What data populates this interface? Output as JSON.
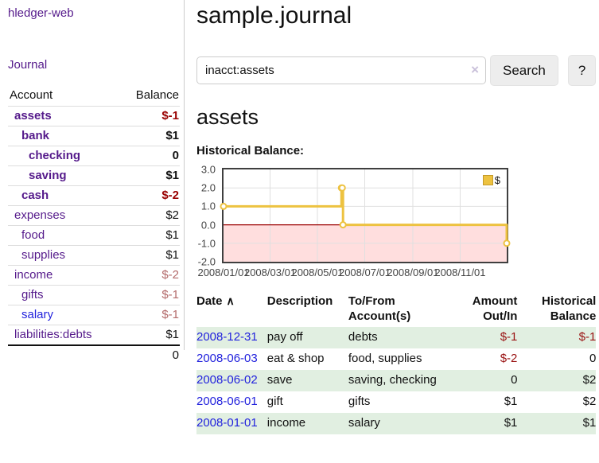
{
  "app": {
    "title": "hledger-web",
    "journal_link": "Journal"
  },
  "sidebar": {
    "header": {
      "account": "Account",
      "balance": "Balance"
    },
    "accounts": [
      {
        "name": "assets",
        "balance": "$-1",
        "level": 1,
        "bold": true,
        "balance_color": "negstrong",
        "name_color": "purple"
      },
      {
        "name": "bank",
        "balance": "$1",
        "level": 2,
        "bold": true,
        "balance_color": "black",
        "name_color": "purple"
      },
      {
        "name": "checking",
        "balance": "0",
        "level": 3,
        "bold": true,
        "balance_color": "black",
        "name_color": "purple"
      },
      {
        "name": "saving",
        "balance": "$1",
        "level": 3,
        "bold": true,
        "balance_color": "black",
        "name_color": "purple"
      },
      {
        "name": "cash",
        "balance": "$-2",
        "level": 2,
        "bold": true,
        "balance_color": "negstrong",
        "name_color": "purple"
      },
      {
        "name": "expenses",
        "balance": "$2",
        "level": 1,
        "bold": false,
        "balance_color": "black",
        "name_color": "purple"
      },
      {
        "name": "food",
        "balance": "$1",
        "level": 2,
        "bold": false,
        "balance_color": "black",
        "name_color": "purple"
      },
      {
        "name": "supplies",
        "balance": "$1",
        "level": 2,
        "bold": false,
        "balance_color": "black",
        "name_color": "purple"
      },
      {
        "name": "income",
        "balance": "$-2",
        "level": 1,
        "bold": false,
        "balance_color": "negmuted",
        "name_color": "purple"
      },
      {
        "name": "gifts",
        "balance": "$-1",
        "level": 2,
        "bold": false,
        "balance_color": "negmuted",
        "name_color": "purple"
      },
      {
        "name": "salary",
        "balance": "$-1",
        "level": 2,
        "bold": false,
        "balance_color": "negmuted",
        "name_color": "blue"
      },
      {
        "name": "liabilities:debts",
        "balance": "$1",
        "level": 1,
        "bold": false,
        "balance_color": "black",
        "name_color": "purple"
      }
    ],
    "total": "0"
  },
  "main": {
    "title": "sample.journal",
    "search": {
      "value": "inacct:assets",
      "clear_icon": "×",
      "button_label": "Search",
      "help_label": "?"
    },
    "account_heading": "assets",
    "chart_heading": "Historical Balance:"
  },
  "chart_data": {
    "type": "line",
    "step": true,
    "title": "Historical Balance:",
    "series": [
      {
        "name": "$",
        "color": "#edc240",
        "points": [
          {
            "date": "2008-01-01",
            "value": 1
          },
          {
            "date": "2008-06-01",
            "value": 2
          },
          {
            "date": "2008-06-02",
            "value": 2
          },
          {
            "date": "2008-06-03",
            "value": 0
          },
          {
            "date": "2008-12-31",
            "value": -1
          }
        ]
      }
    ],
    "xlim": [
      "2008-01-01",
      "2008-12-31"
    ],
    "ylim": [
      -2,
      3
    ],
    "x_ticks": [
      "2008/01/01",
      "2008/03/01",
      "2008/05/01",
      "2008/07/01",
      "2008/09/01",
      "2008/11/01"
    ],
    "y_ticks": [
      3.0,
      2.0,
      1.0,
      0.0,
      -1.0,
      -2.0
    ],
    "grid": true,
    "legend_position": "top-right",
    "negative_region_color": "#ffdede",
    "zero_line_color": "#990000",
    "grid_color": "#e0e0e0",
    "border_color": "#3f3f3f"
  },
  "register": {
    "columns": [
      "Date",
      "Description",
      "To/From Account(s)",
      "Amount Out/In",
      "Historical Balance"
    ],
    "sort_indicator": "∧",
    "rows": [
      {
        "date": "2008-12-31",
        "description": "pay off",
        "accounts": "debts",
        "amount": "$-1",
        "balance": "$-1"
      },
      {
        "date": "2008-06-03",
        "description": "eat & shop",
        "accounts": "food, supplies",
        "amount": "$-2",
        "balance": "0"
      },
      {
        "date": "2008-06-02",
        "description": "save",
        "accounts": "saving, checking",
        "amount": "0",
        "balance": "$2"
      },
      {
        "date": "2008-06-01",
        "description": "gift",
        "accounts": "gifts",
        "amount": "$1",
        "balance": "$2"
      },
      {
        "date": "2008-01-01",
        "description": "income",
        "accounts": "salary",
        "amount": "$1",
        "balance": "$1"
      }
    ]
  },
  "colors": {
    "link_purple": "#551A8B",
    "link_blue": "#2222dd",
    "negative_strong": "#990000",
    "negative_muted": "#b36a6a",
    "row_stripe_green": "#e1efe1",
    "series_gold": "#edc240"
  }
}
